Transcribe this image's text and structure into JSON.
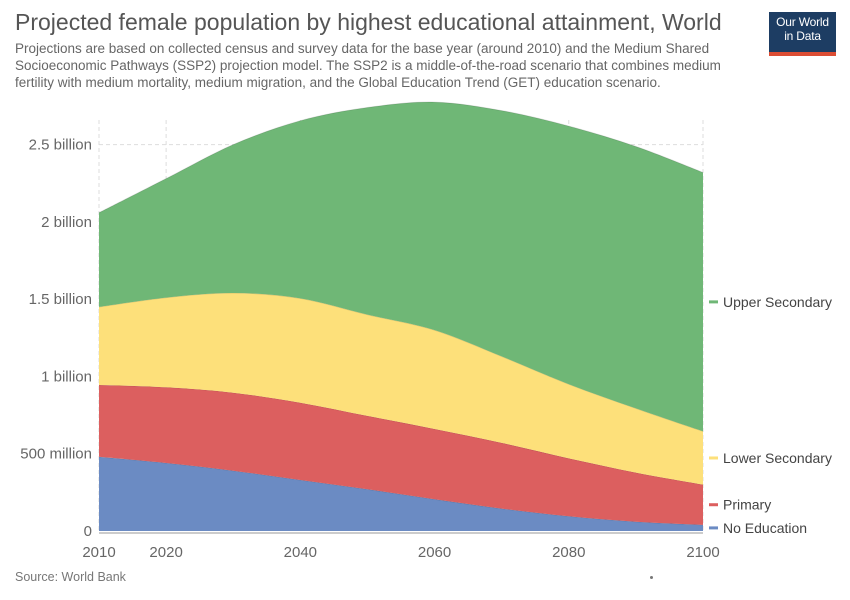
{
  "header": {
    "title": "Projected female population by highest educational attainment, World",
    "subtitle": "Projections are based on collected census and survey data for the base year (around 2010) and the Medium Shared Socioeconomic Pathways (SSP2) projection model. The SSP2 is a middle-of-the-road scenario that combines medium fertility with medium mortality, medium migration, and the Global Education Trend (GET) education scenario."
  },
  "logo": {
    "line1": "Our World",
    "line2": "in Data",
    "bg_color": "#1d3d63",
    "accent_color": "#dc4d34"
  },
  "footer": {
    "source": "Source: World Bank"
  },
  "chart_data": {
    "type": "area",
    "stacked": true,
    "x": [
      2010,
      2020,
      2030,
      2040,
      2050,
      2060,
      2070,
      2080,
      2090,
      2100
    ],
    "xlim": [
      2010,
      2100
    ],
    "ylim": [
      0,
      2750000000
    ],
    "x_ticks": [
      2010,
      2020,
      2040,
      2060,
      2080,
      2100
    ],
    "y_ticks": [
      {
        "value": 0,
        "label": "0"
      },
      {
        "value": 500000000,
        "label": "500 million"
      },
      {
        "value": 1000000000,
        "label": "1 billion"
      },
      {
        "value": 1500000000,
        "label": "1.5 billion"
      },
      {
        "value": 2000000000,
        "label": "2 billion"
      },
      {
        "value": 2500000000,
        "label": "2.5 billion"
      }
    ],
    "grid": true,
    "legend_position": "right",
    "series": [
      {
        "name": "No Education",
        "color": "#6b8bc3",
        "values": [
          480000000,
          440000000,
          390000000,
          330000000,
          270000000,
          205000000,
          145000000,
          95000000,
          60000000,
          40000000
        ]
      },
      {
        "name": "Primary",
        "color": "#dc5f5f",
        "values": [
          465000000,
          490000000,
          505000000,
          500000000,
          475000000,
          455000000,
          425000000,
          375000000,
          318000000,
          260000000
        ]
      },
      {
        "name": "Lower Secondary",
        "color": "#fde07a",
        "values": [
          505000000,
          580000000,
          645000000,
          675000000,
          655000000,
          640000000,
          560000000,
          480000000,
          415000000,
          345000000
        ]
      },
      {
        "name": "Upper Secondary",
        "color": "#6fb776",
        "values": [
          610000000,
          770000000,
          960000000,
          1150000000,
          1340000000,
          1475000000,
          1590000000,
          1670000000,
          1695000000,
          1675000000
        ]
      }
    ]
  }
}
